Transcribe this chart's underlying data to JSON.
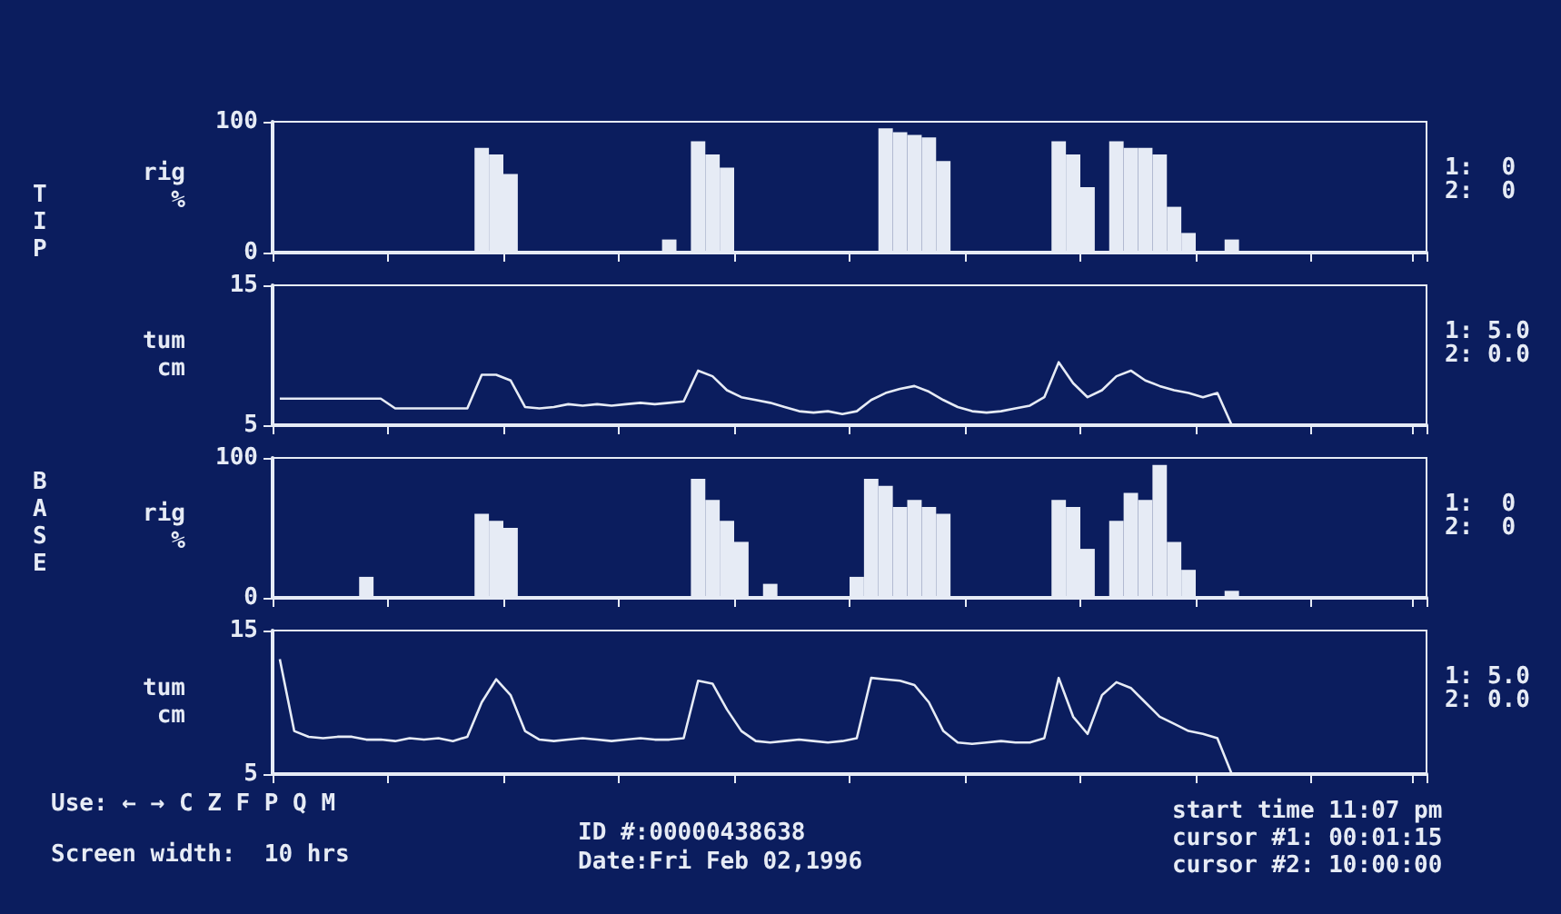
{
  "chart_data": [
    {
      "type": "bar",
      "ylabel": "rig %",
      "color": "#e6ebf5",
      "ylim": [
        0,
        100
      ],
      "yticks": [
        0,
        100
      ],
      "categories": [
        null,
        null,
        null,
        null,
        null,
        null,
        null,
        null,
        null,
        null,
        null,
        null,
        null,
        null,
        null,
        null,
        null,
        null,
        null,
        null,
        null,
        null,
        null,
        null,
        null,
        null,
        null,
        null,
        null,
        null,
        null,
        null,
        null,
        null,
        null,
        null,
        null,
        null,
        null,
        null,
        null,
        null,
        null,
        null,
        null,
        null,
        null,
        null,
        null,
        null,
        null,
        null,
        null,
        null,
        null,
        null,
        null,
        null,
        null,
        null,
        null,
        null,
        null,
        null,
        null,
        null,
        null,
        null,
        null,
        null,
        null,
        null,
        null,
        null,
        null,
        null,
        null,
        null,
        null,
        null
      ],
      "values": [
        0,
        0,
        0,
        0,
        0,
        0,
        0,
        0,
        0,
        0,
        0,
        0,
        0,
        0,
        80,
        75,
        60,
        0,
        0,
        0,
        0,
        0,
        0,
        0,
        0,
        0,
        0,
        10,
        0,
        85,
        75,
        65,
        0,
        0,
        0,
        0,
        0,
        0,
        0,
        0,
        0,
        0,
        95,
        92,
        90,
        88,
        70,
        0,
        0,
        0,
        0,
        0,
        0,
        0,
        85,
        75,
        50,
        0,
        85,
        80,
        80,
        75,
        35,
        15,
        0,
        0,
        10,
        0,
        0,
        0,
        0,
        0,
        0,
        0,
        0,
        0,
        0,
        0,
        0,
        0
      ],
      "annotations": [
        "TIP",
        "1:  0",
        "2:  0"
      ]
    },
    {
      "type": "line",
      "ylabel": "tum cm",
      "color": "#e6ebf5",
      "ylim": [
        5,
        15
      ],
      "yticks": [
        5,
        15
      ],
      "categories": [
        null,
        null,
        null,
        null,
        null,
        null,
        null,
        null,
        null,
        null,
        null,
        null,
        null,
        null,
        null,
        null,
        null,
        null,
        null,
        null,
        null,
        null,
        null,
        null,
        null,
        null,
        null,
        null,
        null,
        null,
        null,
        null,
        null,
        null,
        null,
        null,
        null,
        null,
        null,
        null,
        null,
        null,
        null,
        null,
        null,
        null,
        null,
        null,
        null,
        null,
        null,
        null,
        null,
        null,
        null,
        null,
        null,
        null,
        null,
        null,
        null,
        null,
        null,
        null,
        null,
        null,
        null,
        null,
        null,
        null,
        null,
        null,
        null,
        null,
        null,
        null,
        null,
        null,
        null,
        null
      ],
      "values": [
        6.9,
        6.9,
        6.9,
        6.9,
        6.9,
        6.9,
        6.9,
        6.9,
        6.2,
        6.2,
        6.2,
        6.2,
        6.2,
        6.2,
        8.6,
        8.6,
        8.2,
        6.3,
        6.2,
        6.3,
        6.5,
        6.4,
        6.5,
        6.4,
        6.5,
        6.6,
        6.5,
        6.6,
        6.7,
        8.9,
        8.5,
        7.5,
        7.0,
        6.8,
        6.6,
        6.3,
        6.0,
        5.9,
        6.0,
        5.8,
        6.0,
        6.8,
        7.3,
        7.6,
        7.8,
        7.4,
        6.8,
        6.3,
        6.0,
        5.9,
        6.0,
        6.2,
        6.4,
        7.0,
        9.5,
        8.0,
        7.0,
        7.5,
        8.5,
        8.9,
        8.2,
        7.8,
        7.5,
        7.3,
        7.0,
        7.3,
        5,
        null,
        null,
        null,
        null,
        null,
        null,
        null,
        null,
        null,
        null,
        null,
        null,
        null
      ],
      "annotations": [
        "1: 5.0",
        "2: 0.0"
      ]
    },
    {
      "type": "bar",
      "ylabel": "rig %",
      "color": "#e6ebf5",
      "ylim": [
        0,
        100
      ],
      "yticks": [
        0,
        100
      ],
      "categories": [
        null,
        null,
        null,
        null,
        null,
        null,
        null,
        null,
        null,
        null,
        null,
        null,
        null,
        null,
        null,
        null,
        null,
        null,
        null,
        null,
        null,
        null,
        null,
        null,
        null,
        null,
        null,
        null,
        null,
        null,
        null,
        null,
        null,
        null,
        null,
        null,
        null,
        null,
        null,
        null,
        null,
        null,
        null,
        null,
        null,
        null,
        null,
        null,
        null,
        null,
        null,
        null,
        null,
        null,
        null,
        null,
        null,
        null,
        null,
        null,
        null,
        null,
        null,
        null,
        null,
        null,
        null,
        null,
        null,
        null,
        null,
        null,
        null,
        null,
        null,
        null,
        null,
        null,
        null,
        null
      ],
      "values": [
        0,
        0,
        0,
        0,
        0,
        0,
        15,
        0,
        0,
        0,
        0,
        0,
        0,
        0,
        60,
        55,
        50,
        0,
        0,
        0,
        0,
        0,
        0,
        0,
        0,
        0,
        0,
        0,
        0,
        85,
        70,
        55,
        40,
        0,
        10,
        0,
        0,
        0,
        0,
        0,
        15,
        85,
        80,
        65,
        70,
        65,
        60,
        0,
        0,
        0,
        0,
        0,
        0,
        0,
        70,
        65,
        35,
        0,
        55,
        75,
        70,
        95,
        40,
        20,
        0,
        0,
        5,
        0,
        0,
        0,
        0,
        0,
        0,
        0,
        0,
        0,
        0,
        0,
        0,
        0
      ],
      "annotations": [
        "BASE",
        "1:  0",
        "2:  0"
      ]
    },
    {
      "type": "line",
      "ylabel": "tum cm",
      "color": "#e6ebf5",
      "ylim": [
        5,
        15
      ],
      "yticks": [
        5,
        15
      ],
      "categories": [
        null,
        null,
        null,
        null,
        null,
        null,
        null,
        null,
        null,
        null,
        null,
        null,
        null,
        null,
        null,
        null,
        null,
        null,
        null,
        null,
        null,
        null,
        null,
        null,
        null,
        null,
        null,
        null,
        null,
        null,
        null,
        null,
        null,
        null,
        null,
        null,
        null,
        null,
        null,
        null,
        null,
        null,
        null,
        null,
        null,
        null,
        null,
        null,
        null,
        null,
        null,
        null,
        null,
        null,
        null,
        null,
        null,
        null,
        null,
        null,
        null,
        null,
        null,
        null,
        null,
        null,
        null,
        null,
        null,
        null,
        null,
        null,
        null,
        null,
        null,
        null,
        null,
        null,
        null,
        null
      ],
      "values": [
        13,
        8.0,
        7.6,
        7.5,
        7.6,
        7.6,
        7.4,
        7.4,
        7.3,
        7.5,
        7.4,
        7.5,
        7.3,
        7.6,
        10,
        11.6,
        10.5,
        8,
        7.4,
        7.3,
        7.4,
        7.5,
        7.4,
        7.3,
        7.4,
        7.5,
        7.4,
        7.4,
        7.5,
        11.5,
        11.3,
        9.5,
        8.0,
        7.3,
        7.2,
        7.3,
        7.4,
        7.3,
        7.2,
        7.3,
        7.5,
        11.7,
        11.6,
        11.5,
        11.2,
        10.0,
        8.0,
        7.2,
        7.1,
        7.2,
        7.3,
        7.2,
        7.2,
        7.5,
        11.7,
        9.0,
        7.8,
        10.5,
        11.4,
        11,
        10,
        9,
        8.5,
        8.0,
        7.8,
        7.5,
        5,
        null,
        null,
        null,
        null,
        null,
        null,
        null,
        null,
        null,
        null,
        null,
        null,
        null
      ],
      "annotations": [
        "1: 5.0",
        "2: 0.0",
        "Use: ← → C Z F P Q M",
        "Screen width:  10 hrs",
        "ID #:00000438638",
        "Date:Fri Feb 02,1996",
        "start time 11:07 pm",
        "cursor #1: 00:01:15",
        "cursor #2: 10:00:00"
      ]
    }
  ]
}
